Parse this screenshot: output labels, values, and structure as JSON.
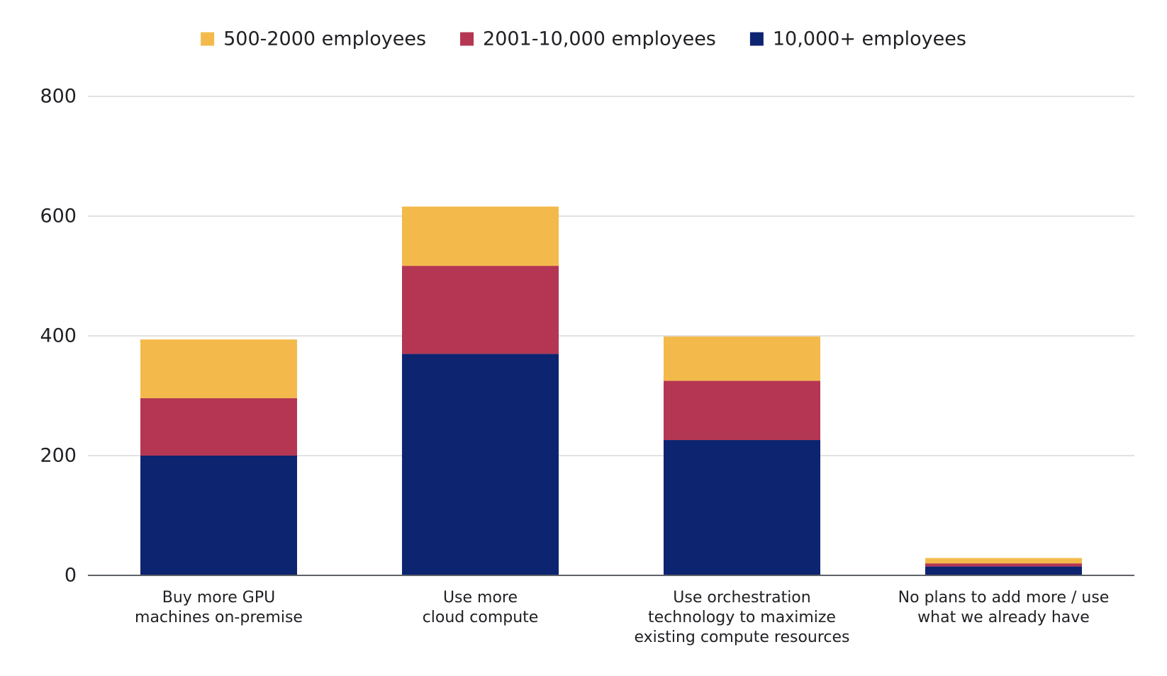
{
  "chart_data": {
    "type": "bar",
    "stacked": true,
    "title": "",
    "xlabel": "",
    "ylabel": "",
    "ylim": [
      0,
      800
    ],
    "yticks": [
      0,
      200,
      400,
      600,
      800
    ],
    "grid": true,
    "legend_position": "top",
    "categories": [
      [
        "Buy more GPU",
        "machines on-premise"
      ],
      [
        "Use more",
        "cloud compute"
      ],
      [
        "Use orchestration",
        "technology to maximize",
        "existing compute resources"
      ],
      [
        "No plans to add more / use",
        "what we already have"
      ]
    ],
    "series": [
      {
        "name": "10,000+ employees",
        "color": "#0d2471",
        "values": [
          200,
          370,
          226,
          15
        ]
      },
      {
        "name": "2001-10,000 employees",
        "color": "#b43652",
        "values": [
          96,
          147,
          99,
          5
        ]
      },
      {
        "name": "500-2000 employees",
        "color": "#f3ba4b",
        "values": [
          98,
          99,
          74,
          9
        ]
      }
    ],
    "legend_order": [
      "500-2000 employees",
      "2001-10,000 employees",
      "10,000+ employees"
    ]
  }
}
